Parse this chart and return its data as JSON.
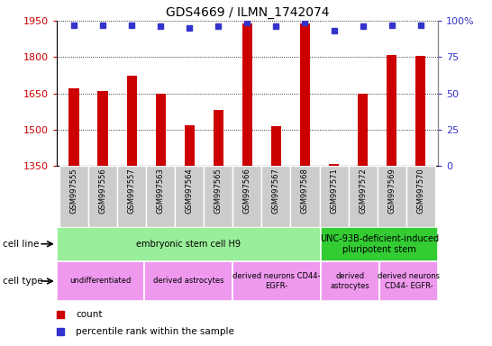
{
  "title": "GDS4669 / ILMN_1742074",
  "samples": [
    "GSM997555",
    "GSM997556",
    "GSM997557",
    "GSM997563",
    "GSM997564",
    "GSM997565",
    "GSM997566",
    "GSM997567",
    "GSM997568",
    "GSM997571",
    "GSM997572",
    "GSM997569",
    "GSM997570"
  ],
  "counts": [
    1670,
    1660,
    1725,
    1650,
    1520,
    1580,
    1940,
    1515,
    1940,
    1360,
    1650,
    1810,
    1805
  ],
  "percentiles": [
    97,
    97,
    97,
    96,
    95,
    96,
    99,
    96,
    99,
    93,
    96,
    97,
    97
  ],
  "ylim_left": [
    1350,
    1950
  ],
  "ylim_right": [
    0,
    100
  ],
  "yticks_left": [
    1350,
    1500,
    1650,
    1800,
    1950
  ],
  "yticks_right": [
    0,
    25,
    50,
    75,
    100
  ],
  "bar_color": "#cc0000",
  "dot_color": "#3333cc",
  "cell_line_groups": [
    {
      "label": "embryonic stem cell H9",
      "start": 0,
      "end": 9,
      "color": "#99ee99"
    },
    {
      "label": "UNC-93B-deficient-induced\npluripotent stem",
      "start": 9,
      "end": 13,
      "color": "#33cc33"
    }
  ],
  "cell_type_groups": [
    {
      "label": "undifferentiated",
      "start": 0,
      "end": 3,
      "color": "#ee99ee"
    },
    {
      "label": "derived astrocytes",
      "start": 3,
      "end": 6,
      "color": "#ee99ee"
    },
    {
      "label": "derived neurons CD44-\nEGFR-",
      "start": 6,
      "end": 9,
      "color": "#ee99ee"
    },
    {
      "label": "derived\nastrocytes",
      "start": 9,
      "end": 11,
      "color": "#ee99ee"
    },
    {
      "label": "derived neurons\nCD44- EGFR-",
      "start": 11,
      "end": 13,
      "color": "#ee99ee"
    }
  ],
  "tick_label_color_left": "#cc0000",
  "tick_label_color_right": "#3333cc",
  "xtick_bg_color": "#cccccc",
  "bar_width": 0.35
}
